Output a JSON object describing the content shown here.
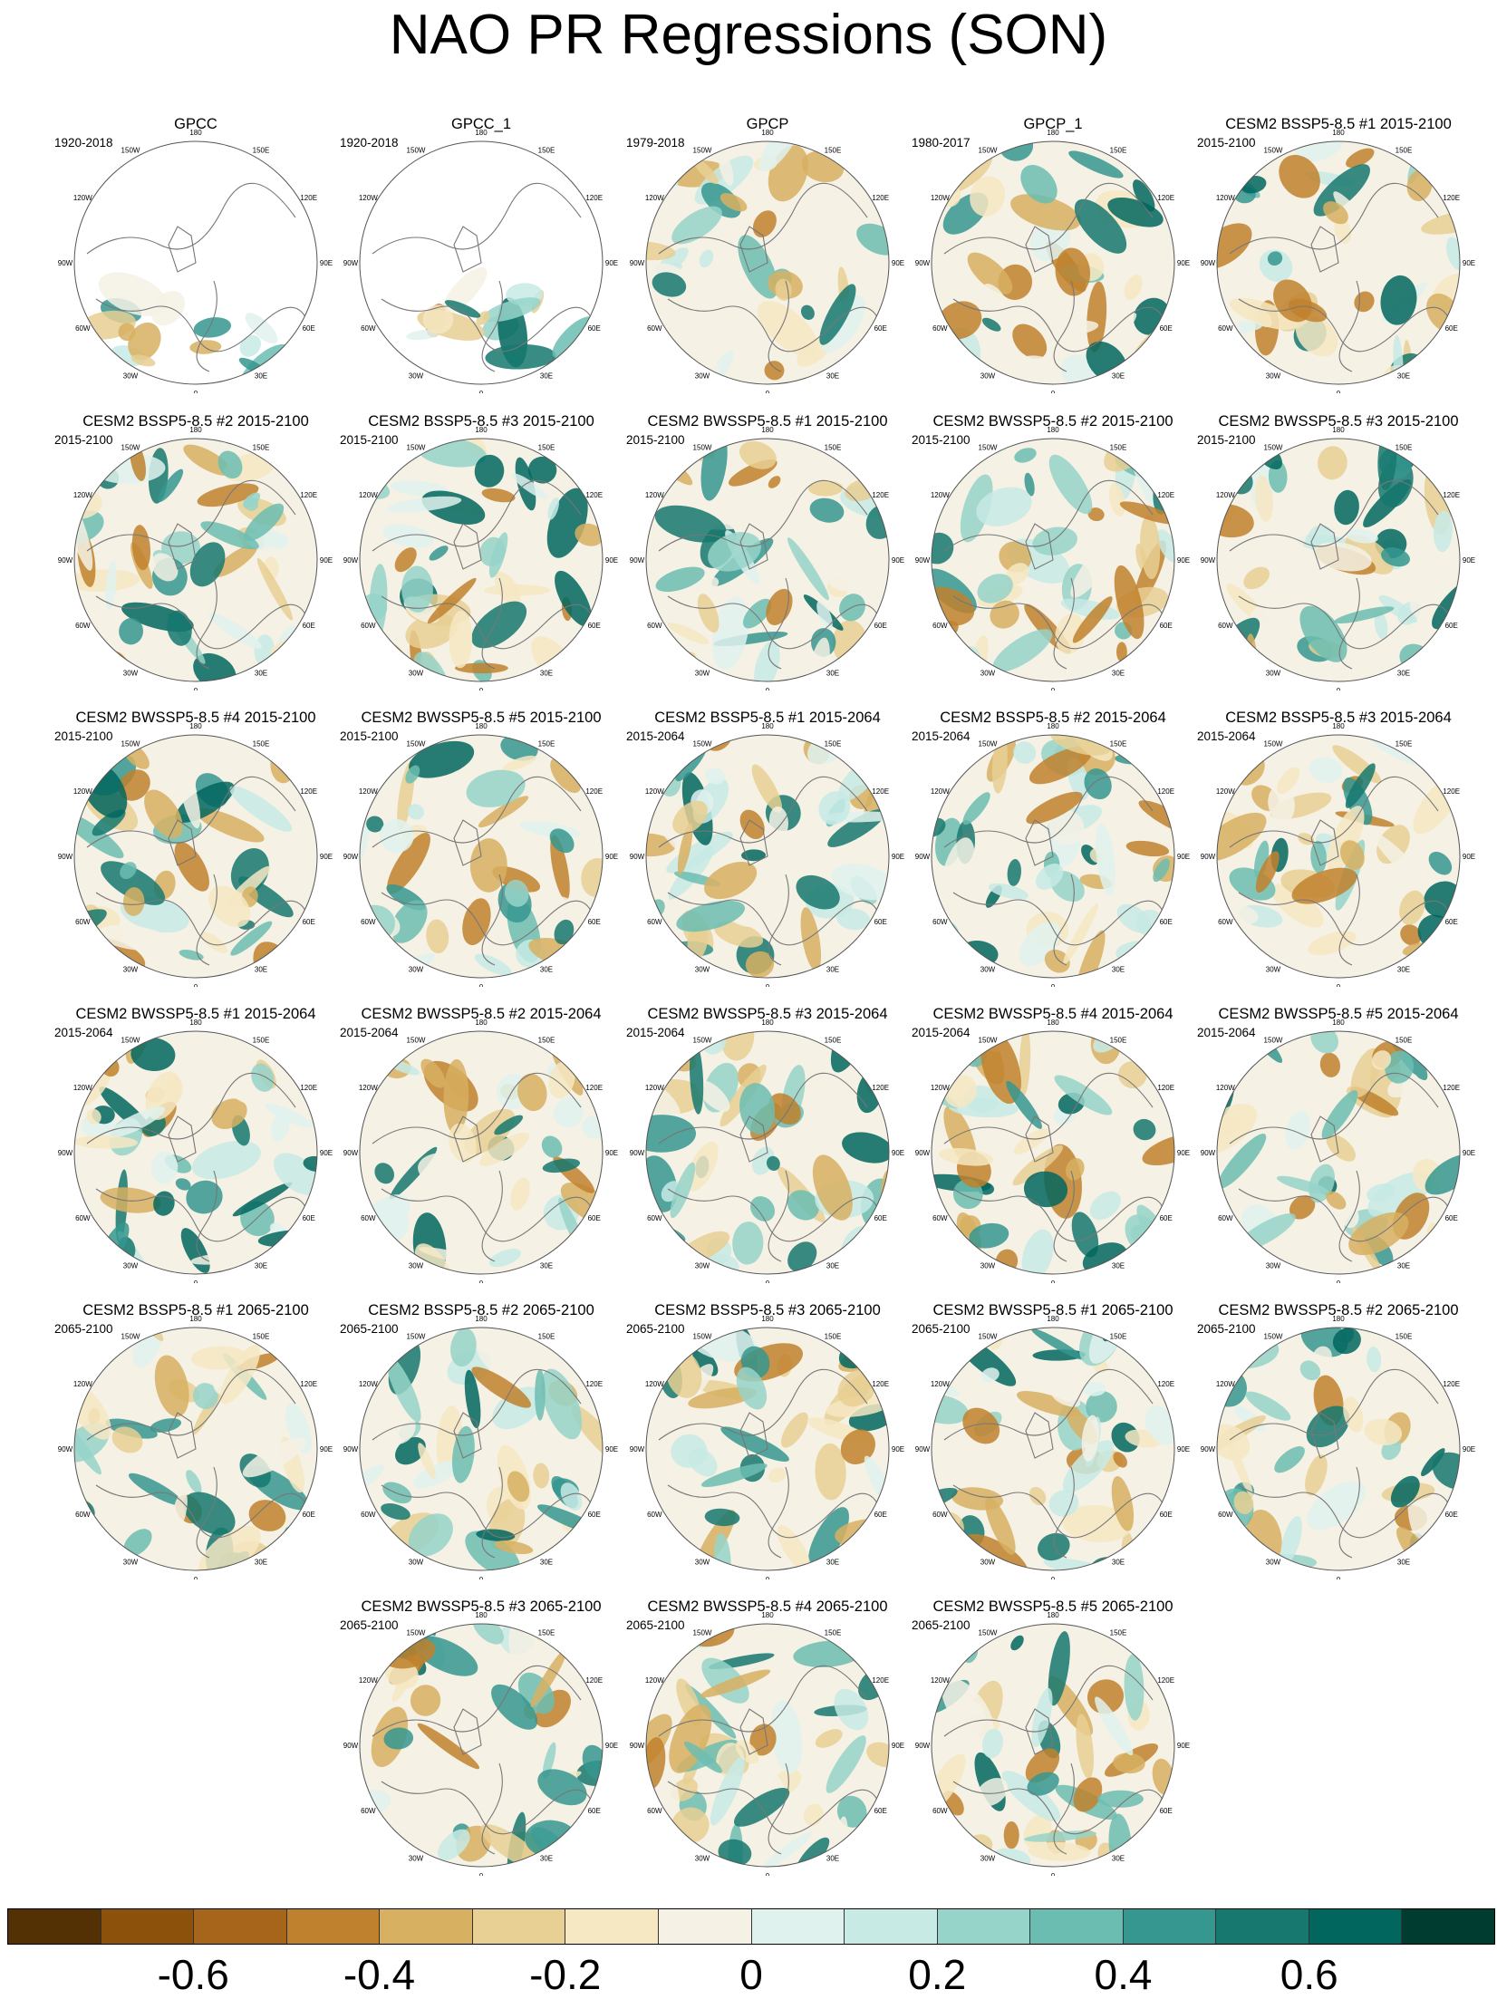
{
  "title": "NAO PR Regressions (SON)",
  "lon_labels": [
    "180",
    "150E",
    "120E",
    "90E",
    "60E",
    "30E",
    "0",
    "30W",
    "60W",
    "90W",
    "120W",
    "150W"
  ],
  "panels": [
    {
      "title": "GPCC",
      "period": "1920-2018",
      "observed": true
    },
    {
      "title": "GPCC_1",
      "period": "1920-2018",
      "observed": true
    },
    {
      "title": "GPCP",
      "period": "1979-2018"
    },
    {
      "title": "GPCP_1",
      "period": "1980-2017"
    },
    {
      "title": "CESM2 BSSP5-8.5 #1 2015-2100",
      "period": "2015-2100"
    },
    {
      "title": "CESM2 BSSP5-8.5 #2 2015-2100",
      "period": "2015-2100"
    },
    {
      "title": "CESM2 BSSP5-8.5 #3 2015-2100",
      "period": "2015-2100"
    },
    {
      "title": "CESM2 BWSSP5-8.5 #1 2015-2100",
      "period": "2015-2100"
    },
    {
      "title": "CESM2 BWSSP5-8.5 #2 2015-2100",
      "period": "2015-2100"
    },
    {
      "title": "CESM2 BWSSP5-8.5 #3 2015-2100",
      "period": "2015-2100"
    },
    {
      "title": "CESM2 BWSSP5-8.5 #4 2015-2100",
      "period": "2015-2100"
    },
    {
      "title": "CESM2 BWSSP5-8.5 #5 2015-2100",
      "period": "2015-2100"
    },
    {
      "title": "CESM2 BSSP5-8.5 #1 2015-2064",
      "period": "2015-2064"
    },
    {
      "title": "CESM2 BSSP5-8.5 #2 2015-2064",
      "period": "2015-2064"
    },
    {
      "title": "CESM2 BSSP5-8.5 #3 2015-2064",
      "period": "2015-2064"
    },
    {
      "title": "CESM2 BWSSP5-8.5 #1 2015-2064",
      "period": "2015-2064"
    },
    {
      "title": "CESM2 BWSSP5-8.5 #2 2015-2064",
      "period": "2015-2064"
    },
    {
      "title": "CESM2 BWSSP5-8.5 #3 2015-2064",
      "period": "2015-2064"
    },
    {
      "title": "CESM2 BWSSP5-8.5 #4 2015-2064",
      "period": "2015-2064"
    },
    {
      "title": "CESM2 BWSSP5-8.5 #5 2015-2064",
      "period": "2015-2064"
    },
    {
      "title": "CESM2 BSSP5-8.5 #1 2065-2100",
      "period": "2065-2100"
    },
    {
      "title": "CESM2 BSSP5-8.5 #2 2065-2100",
      "period": "2065-2100"
    },
    {
      "title": "CESM2 BSSP5-8.5 #3 2065-2100",
      "period": "2065-2100"
    },
    {
      "title": "CESM2 BWSSP5-8.5 #1 2065-2100",
      "period": "2065-2100"
    },
    {
      "title": "CESM2 BWSSP5-8.5 #2 2065-2100",
      "period": "2065-2100"
    },
    {
      "title": "CESM2 BWSSP5-8.5 #3 2065-2100",
      "period": "2065-2100"
    },
    {
      "title": "CESM2 BWSSP5-8.5 #4 2065-2100",
      "period": "2065-2100"
    },
    {
      "title": "CESM2 BWSSP5-8.5 #5 2065-2100",
      "period": "2065-2100"
    }
  ],
  "colorbar": {
    "colors": [
      "#543005",
      "#8c510a",
      "#a7651b",
      "#bf812d",
      "#d7b062",
      "#e8cf93",
      "#f6e8c3",
      "#f5f1e5",
      "#e0f2ee",
      "#c7eae5",
      "#96d3c9",
      "#6cbdb1",
      "#35978f",
      "#16786f",
      "#01665e",
      "#003c30"
    ],
    "labels": [
      "-0.6",
      "-0.4",
      "-0.2",
      "0",
      "0.2",
      "0.4",
      "0.6"
    ],
    "label_positions": [
      2,
      4,
      6,
      8,
      10,
      12,
      14
    ],
    "segments": 16
  }
}
